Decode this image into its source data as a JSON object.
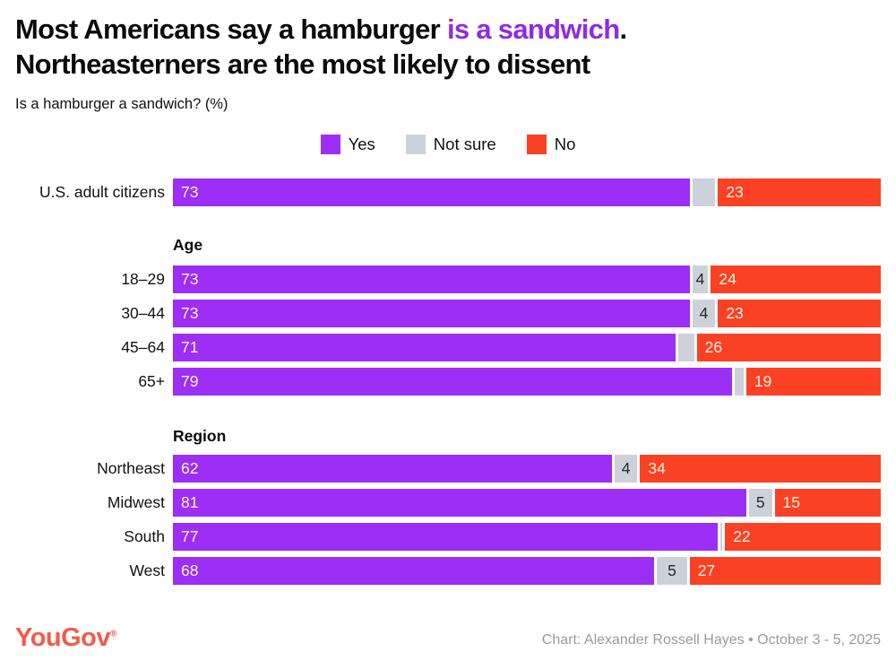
{
  "title": {
    "part1": "Most Americans say a hamburger ",
    "accent": "is a sandwich",
    "part2": ".",
    "line2": "Northeasterners are the most likely to dissent"
  },
  "subtitle": "Is a hamburger a sandwich? (%)",
  "legend": [
    {
      "label": "Yes",
      "color": "#9d2ef5"
    },
    {
      "label": "Not sure",
      "color": "#cdd1d9"
    },
    {
      "label": "No",
      "color": "#fb4123"
    }
  ],
  "chart_data": {
    "type": "bar",
    "orientation": "horizontal-stacked",
    "unit": "%",
    "xlim": [
      0,
      100
    ],
    "series_names": [
      "Yes",
      "Not sure",
      "No"
    ],
    "legend_position": "top-center",
    "groups": [
      {
        "header": "",
        "rows": [
          {
            "label": "U.S. adult citizens",
            "yes": 73,
            "not_sure": 4,
            "no": 23,
            "yes_label": "73",
            "not_sure_label": "",
            "no_label": "23"
          }
        ]
      },
      {
        "header": "Age",
        "rows": [
          {
            "label": "18–29",
            "yes": 73,
            "not_sure": 4,
            "no": 24,
            "yes_label": "73",
            "not_sure_label": "4",
            "no_label": "24"
          },
          {
            "label": "30–44",
            "yes": 73,
            "not_sure": 4,
            "no": 23,
            "yes_label": "73",
            "not_sure_label": "4",
            "no_label": "23"
          },
          {
            "label": "45–64",
            "yes": 71,
            "not_sure": 3,
            "no": 26,
            "yes_label": "71",
            "not_sure_label": "",
            "no_label": "26"
          },
          {
            "label": "65+",
            "yes": 79,
            "not_sure": 2,
            "no": 19,
            "yes_label": "79",
            "not_sure_label": "",
            "no_label": "19"
          }
        ]
      },
      {
        "header": "Region",
        "rows": [
          {
            "label": "Northeast",
            "yes": 62,
            "not_sure": 4,
            "no": 34,
            "yes_label": "62",
            "not_sure_label": "4",
            "no_label": "34"
          },
          {
            "label": "Midwest",
            "yes": 81,
            "not_sure": 5,
            "no": 15,
            "yes_label": "81",
            "not_sure_label": "5",
            "no_label": "15"
          },
          {
            "label": "South",
            "yes": 77,
            "not_sure": 1,
            "no": 22,
            "yes_label": "77",
            "not_sure_label": "",
            "no_label": "22"
          },
          {
            "label": "West",
            "yes": 68,
            "not_sure": 5,
            "no": 27,
            "yes_label": "68",
            "not_sure_label": "5",
            "no_label": "27"
          }
        ]
      }
    ]
  },
  "colors": {
    "yes": "#9d2ef5",
    "not_sure": "#cdd1d9",
    "no": "#fb4123",
    "title_accent": "#8f2be4",
    "bar_label_light": "#fbf3e2",
    "bar_label_dark": "#26282b",
    "logo": "#f05b4b",
    "credit": "#9b9b9b"
  },
  "footer": {
    "logo": "YouGov",
    "registered": "®",
    "credit": "Chart: Alexander Rossell Hayes • October 3 - 5, 2025"
  }
}
